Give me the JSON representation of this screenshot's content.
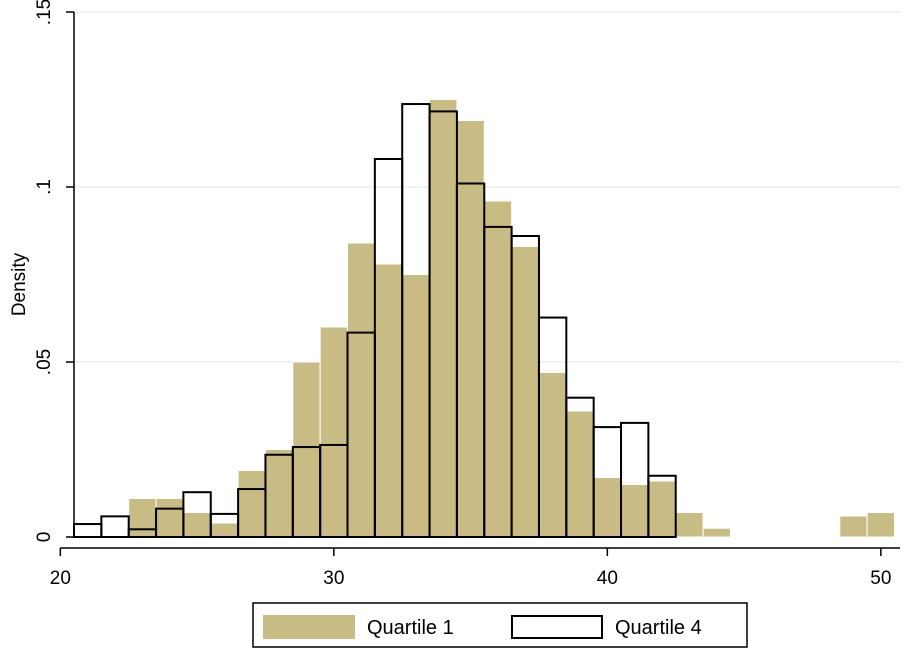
{
  "chart_data": {
    "type": "bar",
    "title": "",
    "xlabel": "",
    "ylabel": "Density",
    "xlim": [
      20.5,
      50.7
    ],
    "ylim": [
      0,
      0.15
    ],
    "x_ticks": [
      20,
      30,
      40,
      50
    ],
    "x_tick_labels": [
      "20",
      "30",
      "40",
      "50"
    ],
    "y_ticks": [
      0,
      0.05,
      0.1,
      0.15
    ],
    "y_tick_labels": [
      "0",
      ".05",
      ".1",
      ".15"
    ],
    "grid": true,
    "legend_position": "bottom",
    "series": [
      {
        "name": "Quartile 1",
        "style": "filled",
        "color": "#c8bb84",
        "bins": [
          {
            "x0": 22.5,
            "x1": 23.5,
            "y": 0.011
          },
          {
            "x0": 23.5,
            "x1": 24.5,
            "y": 0.011
          },
          {
            "x0": 24.5,
            "x1": 25.5,
            "y": 0.007
          },
          {
            "x0": 25.5,
            "x1": 26.5,
            "y": 0.004
          },
          {
            "x0": 26.5,
            "x1": 27.5,
            "y": 0.019
          },
          {
            "x0": 27.5,
            "x1": 28.5,
            "y": 0.025
          },
          {
            "x0": 28.5,
            "x1": 29.5,
            "y": 0.05
          },
          {
            "x0": 29.5,
            "x1": 30.5,
            "y": 0.06
          },
          {
            "x0": 30.5,
            "x1": 31.5,
            "y": 0.084
          },
          {
            "x0": 31.5,
            "x1": 32.5,
            "y": 0.078
          },
          {
            "x0": 32.5,
            "x1": 33.5,
            "y": 0.075
          },
          {
            "x0": 33.5,
            "x1": 34.5,
            "y": 0.125
          },
          {
            "x0": 34.5,
            "x1": 35.5,
            "y": 0.119
          },
          {
            "x0": 35.5,
            "x1": 36.5,
            "y": 0.096
          },
          {
            "x0": 36.5,
            "x1": 37.5,
            "y": 0.083
          },
          {
            "x0": 37.5,
            "x1": 38.5,
            "y": 0.047
          },
          {
            "x0": 38.5,
            "x1": 39.5,
            "y": 0.036
          },
          {
            "x0": 39.5,
            "x1": 40.5,
            "y": 0.017
          },
          {
            "x0": 40.5,
            "x1": 41.5,
            "y": 0.015
          },
          {
            "x0": 41.5,
            "x1": 42.5,
            "y": 0.016
          },
          {
            "x0": 42.5,
            "x1": 43.5,
            "y": 0.007
          },
          {
            "x0": 43.5,
            "x1": 44.5,
            "y": 0.0025
          },
          {
            "x0": 48.5,
            "x1": 49.5,
            "y": 0.006
          },
          {
            "x0": 49.5,
            "x1": 50.5,
            "y": 0.007
          }
        ]
      },
      {
        "name": "Quartile 4",
        "style": "outline",
        "color": "#000000",
        "bins": [
          {
            "x0": 20.5,
            "x1": 21.5,
            "y": 0.0037
          },
          {
            "x0": 21.5,
            "x1": 22.5,
            "y": 0.0059
          },
          {
            "x0": 22.5,
            "x1": 23.5,
            "y": 0.0022
          },
          {
            "x0": 23.5,
            "x1": 24.5,
            "y": 0.0081
          },
          {
            "x0": 24.5,
            "x1": 25.5,
            "y": 0.0128
          },
          {
            "x0": 25.5,
            "x1": 26.5,
            "y": 0.0066
          },
          {
            "x0": 26.5,
            "x1": 27.5,
            "y": 0.0137
          },
          {
            "x0": 27.5,
            "x1": 28.5,
            "y": 0.0235
          },
          {
            "x0": 28.5,
            "x1": 29.5,
            "y": 0.0257
          },
          {
            "x0": 29.5,
            "x1": 30.5,
            "y": 0.0263
          },
          {
            "x0": 30.5,
            "x1": 31.5,
            "y": 0.0584
          },
          {
            "x0": 31.5,
            "x1": 32.5,
            "y": 0.108
          },
          {
            "x0": 32.5,
            "x1": 33.5,
            "y": 0.1237
          },
          {
            "x0": 33.5,
            "x1": 34.5,
            "y": 0.1216
          },
          {
            "x0": 34.5,
            "x1": 35.5,
            "y": 0.101
          },
          {
            "x0": 35.5,
            "x1": 36.5,
            "y": 0.0886
          },
          {
            "x0": 36.5,
            "x1": 37.5,
            "y": 0.086
          },
          {
            "x0": 37.5,
            "x1": 38.5,
            "y": 0.0627
          },
          {
            "x0": 38.5,
            "x1": 39.5,
            "y": 0.0398
          },
          {
            "x0": 39.5,
            "x1": 40.5,
            "y": 0.0314
          },
          {
            "x0": 40.5,
            "x1": 41.5,
            "y": 0.0326
          },
          {
            "x0": 41.5,
            "x1": 42.5,
            "y": 0.0175
          }
        ]
      }
    ]
  }
}
